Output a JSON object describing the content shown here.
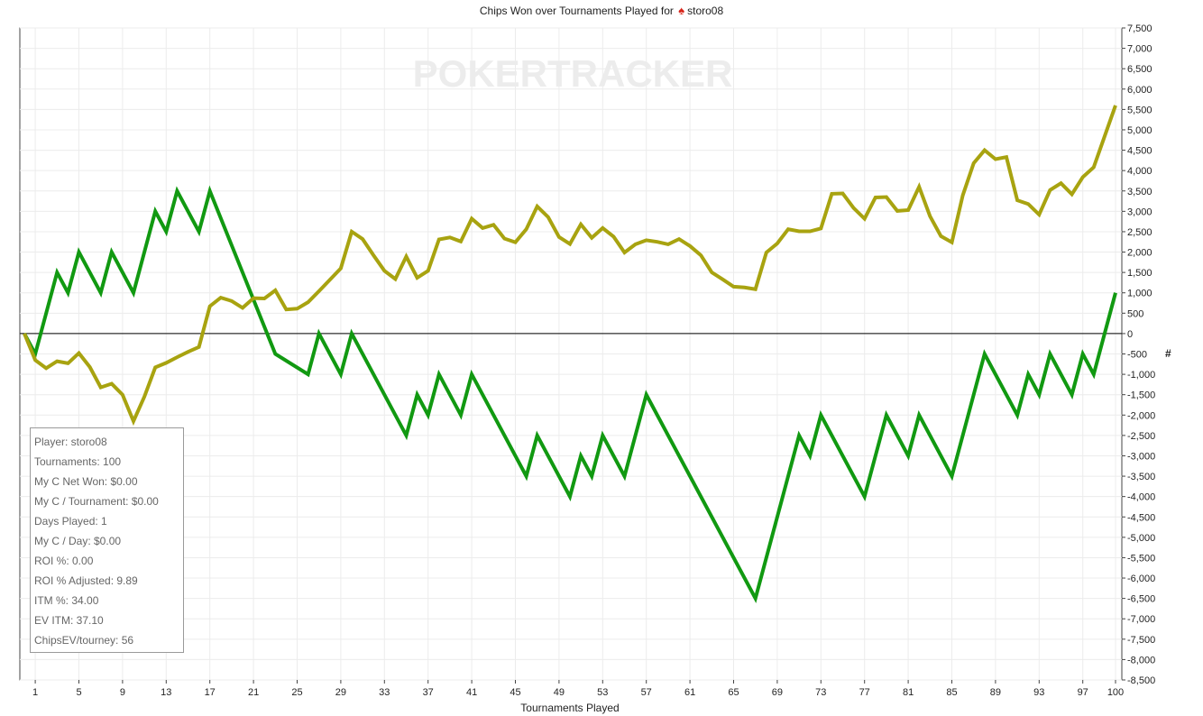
{
  "chart_data": {
    "type": "line",
    "title": "Chips Won over Tournaments Played for",
    "player": "storo08",
    "xlabel": "Tournaments Played",
    "ylabel": "#",
    "watermark": "POKERTRACKER",
    "xlim": [
      0,
      100
    ],
    "ylim": [
      -8500,
      7500
    ],
    "grid": true,
    "y_axis_side": "right",
    "x_ticks": [
      1,
      5,
      9,
      13,
      17,
      21,
      25,
      29,
      33,
      37,
      41,
      45,
      49,
      53,
      57,
      61,
      65,
      69,
      73,
      77,
      81,
      85,
      89,
      93,
      97,
      100
    ],
    "y_ticks": [
      7500,
      7000,
      6500,
      6000,
      5500,
      5000,
      4500,
      4000,
      3500,
      3000,
      2500,
      2000,
      1500,
      1000,
      500,
      0,
      -500,
      -1000,
      -1500,
      -2000,
      -2500,
      -3000,
      -3500,
      -4000,
      -4500,
      -5000,
      -5500,
      -6000,
      -6500,
      -7000,
      -7500,
      -8000,
      -8500
    ],
    "y_tick_labels": [
      "7,500",
      "7,000",
      "6,500",
      "6,000",
      "5,500",
      "5,000",
      "4,500",
      "4,000",
      "3,500",
      "3,000",
      "2,500",
      "2,000",
      "1,500",
      "1,000",
      "500",
      "0",
      "-500",
      "-1,000",
      "-1,500",
      "-2,000",
      "-2,500",
      "-3,000",
      "-3,500",
      "-4,000",
      "-4,500",
      "-5,000",
      "-5,500",
      "-6,000",
      "-6,500",
      "-7,000",
      "-7,500",
      "-8,000",
      "-8,500"
    ],
    "series": [
      {
        "color": "#119911",
        "x": [
          0,
          1,
          3,
          4,
          5,
          7,
          8,
          10,
          12,
          13,
          14,
          16,
          17,
          23,
          26,
          27,
          29,
          30,
          35,
          36,
          37,
          38,
          40,
          41,
          46,
          47,
          50,
          51,
          52,
          53,
          55,
          57,
          67,
          71,
          72,
          73,
          77,
          79,
          81,
          82,
          85,
          88,
          91,
          92,
          93,
          94,
          96,
          97,
          98,
          100
        ],
        "values": [
          0,
          -500,
          1500,
          1000,
          2000,
          1000,
          2000,
          1000,
          3000,
          2500,
          3500,
          2500,
          3500,
          -500,
          -1000,
          0,
          -1000,
          0,
          -2500,
          -1500,
          -2000,
          -1000,
          -2000,
          -1000,
          -3500,
          -2500,
          -4000,
          -3000,
          -3500,
          -2500,
          -3500,
          -1500,
          -6500,
          -2500,
          -3000,
          -2000,
          -4000,
          -2000,
          -3000,
          -2000,
          -3500,
          -500,
          -2000,
          -1000,
          -1500,
          -500,
          -1500,
          -500,
          -1000,
          1000
        ]
      },
      {
        "color": "#a8a310",
        "x": [
          0,
          1,
          2,
          3,
          4,
          5,
          6,
          7,
          8,
          9,
          10,
          11,
          12,
          13,
          14,
          15,
          16,
          17,
          18,
          19,
          20,
          21,
          22,
          23,
          24,
          25,
          26,
          27,
          28,
          29,
          30,
          31,
          32,
          33,
          34,
          35,
          36,
          37,
          38,
          39,
          40,
          41,
          42,
          43,
          44,
          45,
          46,
          47,
          48,
          49,
          50,
          51,
          52,
          53,
          54,
          55,
          56,
          57,
          58,
          59,
          60,
          61,
          62,
          63,
          64,
          65,
          66,
          67,
          68,
          69,
          70,
          71,
          72,
          73,
          74,
          75,
          76,
          77,
          78,
          79,
          80,
          81,
          82,
          83,
          84,
          85,
          86,
          87,
          88,
          89,
          90,
          91,
          92,
          93,
          94,
          95,
          96,
          97,
          98,
          99,
          100
        ],
        "values": [
          0,
          -650,
          -850,
          -680,
          -730,
          -480,
          -820,
          -1320,
          -1230,
          -1500,
          -2150,
          -1550,
          -830,
          -720,
          -580,
          -450,
          -330,
          670,
          880,
          800,
          630,
          870,
          860,
          1060,
          590,
          610,
          770,
          1040,
          1320,
          1600,
          2500,
          2320,
          1920,
          1540,
          1340,
          1890,
          1370,
          1540,
          2310,
          2360,
          2260,
          2820,
          2590,
          2670,
          2330,
          2240,
          2560,
          3120,
          2860,
          2370,
          2200,
          2680,
          2350,
          2590,
          2380,
          1990,
          2190,
          2290,
          2250,
          2190,
          2320,
          2150,
          1920,
          1500,
          1330,
          1150,
          1130,
          1090,
          1990,
          2210,
          2560,
          2510,
          2510,
          2580,
          3430,
          3440,
          3080,
          2820,
          3340,
          3350,
          3010,
          3030,
          3600,
          2880,
          2390,
          2240,
          3390,
          4180,
          4500,
          4280,
          4330,
          3270,
          3180,
          2920,
          3520,
          3690,
          3420,
          3840,
          4080,
          4840,
          5600
        ]
      }
    ]
  },
  "stats": [
    "Player: storo08",
    "Tournaments: 100",
    "My C Net Won: $0.00",
    "My C / Tournament: $0.00",
    "Days Played: 1",
    "My C / Day: $0.00",
    "ROI %: 0.00",
    "ROI % Adjusted: 9.89",
    "ITM %: 34.00",
    "EV ITM: 37.10",
    "ChipsEV/tourney: 56"
  ]
}
